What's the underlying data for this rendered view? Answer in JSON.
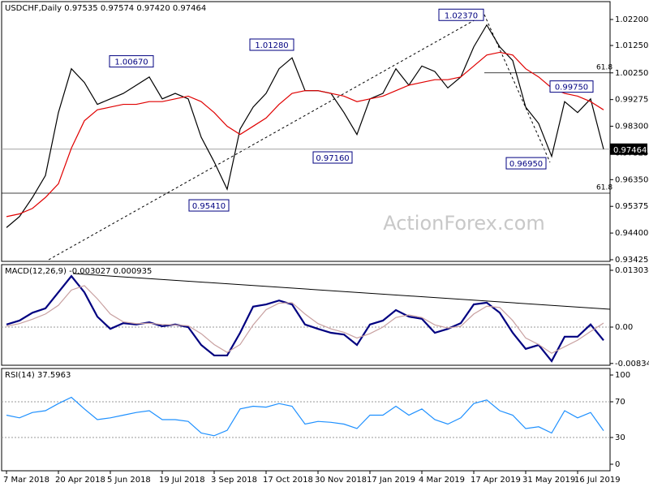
{
  "chart_data": [
    {
      "type": "line",
      "title": "USDCHF,Daily  0.97535 0.97574 0.97420 0.97464",
      "categories": [
        "7 Mar 2018",
        null,
        null,
        null,
        "20 Apr 2018",
        null,
        null,
        null,
        "5 Jun 2018",
        null,
        null,
        null,
        "19 Jul 2018",
        null,
        null,
        null,
        "3 Sep 2018",
        null,
        null,
        null,
        "17 Oct 2018",
        null,
        null,
        null,
        "30 Nov 2018",
        null,
        null,
        null,
        "17 Jan 2019",
        null,
        null,
        null,
        "4 Mar 2019",
        null,
        null,
        null,
        "17 Apr 2019",
        null,
        null,
        null,
        "31 May 2019",
        null,
        null,
        null,
        "16 Jul 2019",
        null,
        null
      ],
      "series": [
        {
          "color": "#000000",
          "values": [
            0.946,
            0.95,
            0.957,
            0.965,
            0.988,
            1.004,
            0.999,
            0.991,
            0.993,
            0.995,
            0.998,
            1.001,
            0.993,
            0.995,
            0.993,
            0.979,
            0.97,
            0.96,
            0.982,
            0.99,
            0.995,
            1.004,
            1.008,
            0.996,
            0.996,
            0.995,
            0.988,
            0.98,
            0.993,
            0.995,
            1.004,
            0.998,
            1.005,
            1.003,
            0.997,
            1.001,
            1.012,
            1.02,
            1.012,
            1.007,
            0.99,
            0.984,
            0.972,
            0.992,
            0.988,
            0.993,
            0.97464
          ]
        },
        {
          "color": "#e00000",
          "values": [
            0.95,
            0.951,
            0.953,
            0.957,
            0.962,
            0.975,
            0.985,
            0.989,
            0.99,
            0.991,
            0.991,
            0.992,
            0.992,
            0.993,
            0.994,
            0.992,
            0.988,
            0.983,
            0.98,
            0.983,
            0.986,
            0.991,
            0.995,
            0.996,
            0.996,
            0.995,
            0.994,
            0.992,
            0.993,
            0.994,
            0.996,
            0.998,
            0.999,
            1.0,
            1.0,
            1.001,
            1.005,
            1.009,
            1.01,
            1.009,
            1.004,
            1.001,
            0.997,
            0.995,
            0.994,
            0.992,
            0.989
          ]
        }
      ],
      "ylim": [
        0.93366,
        1.02852
      ],
      "yticks": [
        {
          "value": 1.022,
          "label": "1.02200"
        },
        {
          "value": 1.0125,
          "label": "1.01250"
        },
        {
          "value": 1.0025,
          "label": "1.00250"
        },
        {
          "value": 0.99275,
          "label": "0.99275"
        },
        {
          "value": 0.983,
          "label": "0.98300"
        },
        {
          "value": 0.97325,
          "label": "0.97325"
        },
        {
          "value": 0.9635,
          "label": "0.96350"
        },
        {
          "value": 0.95375,
          "label": "0.95375"
        },
        {
          "value": 0.944,
          "label": "0.94400"
        },
        {
          "value": 0.93425,
          "label": "0.93425"
        }
      ],
      "annotations": [
        {
          "value": 1.0067,
          "label": "1.00670"
        },
        {
          "value": 1.0128,
          "label": "1.01280"
        },
        {
          "value": 1.0237,
          "label": "1.02370"
        },
        {
          "value": 0.9716,
          "label": "0.97160"
        },
        {
          "value": 0.9541,
          "label": "0.95410"
        },
        {
          "value": 0.9695,
          "label": "0.96950"
        },
        {
          "value": 0.9975,
          "label": "0.99750"
        }
      ],
      "levels": [
        {
          "value": 1.0025,
          "label": "61.8"
        },
        {
          "value": 0.95856,
          "label": "61.8"
        }
      ],
      "last_price": {
        "value": 0.97464,
        "label": "0.97464"
      }
    },
    {
      "type": "line",
      "title": "MACD(12,26,9) -0.003027 0.000935",
      "series": [
        {
          "color": "#000080",
          "values": [
            0.0006,
            0.0015,
            0.0033,
            0.0043,
            0.008,
            0.0117,
            0.008,
            0.0024,
            -0.0004,
            0.0009,
            0.0006,
            0.0011,
            0.0002,
            0.0006,
            0,
            -0.0041,
            -0.0065,
            -0.0065,
            -0.0013,
            0.0047,
            0.0052,
            0.0061,
            0.0052,
            0.0006,
            -0.0004,
            -0.0013,
            -0.0017,
            -0.0041,
            0.0006,
            0.0015,
            0.0039,
            0.0024,
            0.0019,
            -0.0013,
            -0.0004,
            0.0009,
            0.0052,
            0.0056,
            0.0033,
            -0.0013,
            -0.005,
            -0.0041,
            -0.0078,
            -0.0022,
            -0.0022,
            0.0006,
            -0.003027
          ]
        },
        {
          "color": "#c8a0a0",
          "values": [
            0.0002,
            0.0008,
            0.0018,
            0.003,
            0.005,
            0.0085,
            0.0095,
            0.0065,
            0.003,
            0.0012,
            0.0008,
            0.0009,
            0.0006,
            0.0005,
            0.0003,
            -0.0015,
            -0.004,
            -0.0058,
            -0.004,
            0.0005,
            0.004,
            0.0055,
            0.0056,
            0.003,
            0.0008,
            -0.0004,
            -0.0012,
            -0.0025,
            -0.0015,
            0,
            0.0022,
            0.0028,
            0.0022,
            0.0005,
            -0.0002,
            0.0002,
            0.003,
            0.0048,
            0.0045,
            0.0015,
            -0.0025,
            -0.004,
            -0.006,
            -0.0045,
            -0.003,
            -0.001,
            0.000935
          ]
        }
      ],
      "ylim": [
        -0.00875,
        0.01434
      ],
      "yticks": [
        0.013034,
        {
          "value": 0,
          "label": "0.00"
        },
        -0.00834
      ],
      "dotted_levels": [
        0
      ]
    },
    {
      "type": "line",
      "title": "RSI(14) 37.5963",
      "series": [
        {
          "color": "#1e90ff",
          "values": [
            55,
            52,
            58,
            60,
            68,
            75,
            62,
            50,
            52,
            55,
            58,
            60,
            50,
            50,
            48,
            35,
            32,
            38,
            62,
            65,
            64,
            68,
            65,
            45,
            48,
            47,
            45,
            40,
            55,
            55,
            65,
            55,
            62,
            50,
            45,
            52,
            68,
            72,
            60,
            55,
            40,
            42,
            35,
            60,
            52,
            58,
            37.5963
          ]
        }
      ],
      "ylim": [
        -7.3,
        107.3
      ],
      "yticks": [
        100,
        70,
        30,
        {
          "value": 0,
          "label": "0"
        }
      ],
      "dotted_levels": [
        70,
        30
      ]
    }
  ],
  "watermark": "ActionForex.com"
}
